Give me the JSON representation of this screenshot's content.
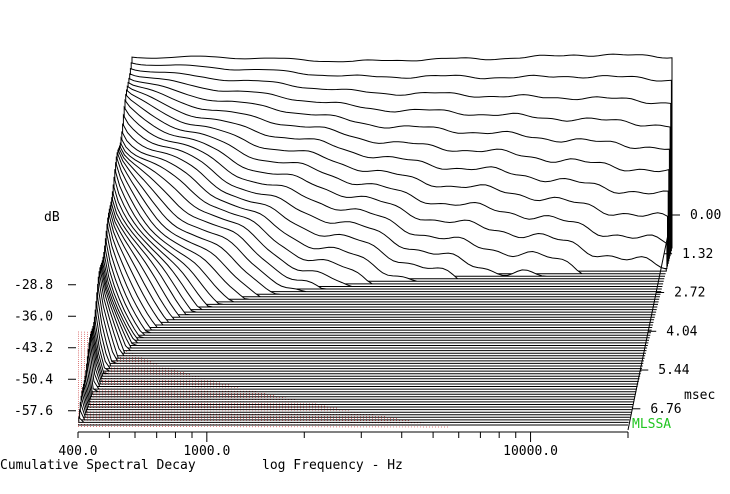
{
  "chart_data": {
    "type": "waterfall",
    "xlabel": "log Frequency - Hz",
    "ylabel": "dB",
    "zlabel": "msec",
    "caption": "Cumulative Spectral Decay",
    "brand": "MLSSA",
    "x_scale": "log",
    "xlim": [
      400,
      20000
    ],
    "x_ticks": [
      "400.0",
      "1000.0",
      "10000.0"
    ],
    "y_ticks": [
      "-28.8",
      "-36.0",
      "-43.2",
      "-50.4",
      "-57.6"
    ],
    "ylim": [
      -62,
      -14
    ],
    "time_ticks": [
      "0.00",
      "1.32",
      "2.72",
      "4.04",
      "5.44",
      "6.76"
    ],
    "time_unit_label": "msec",
    "time_range_ms": [
      0,
      7.5
    ],
    "num_slices": 70,
    "initial_response_db": [
      {
        "f": 400,
        "db": -16
      },
      {
        "f": 700,
        "db": -16
      },
      {
        "f": 1000,
        "db": -16.5
      },
      {
        "f": 2000,
        "db": -17
      },
      {
        "f": 5000,
        "db": -16.5
      },
      {
        "f": 10000,
        "db": -15.5
      },
      {
        "f": 20000,
        "db": -16
      }
    ]
  }
}
